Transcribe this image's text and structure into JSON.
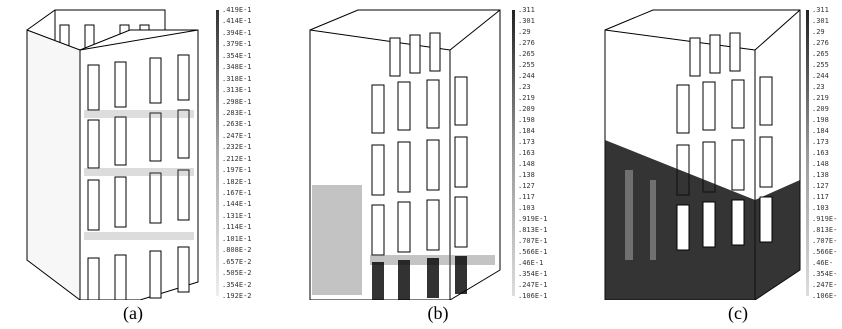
{
  "panels": [
    {
      "caption": "(a)",
      "scale_ticks": [
        ".419E-1",
        ".414E-1",
        ".394E-1",
        ".379E-1",
        ".354E-1",
        ".348E-1",
        ".318E-1",
        ".313E-1",
        ".298E-1",
        ".283E-1",
        ".263E-1",
        ".247E-1",
        ".232E-1",
        ".212E-1",
        ".197E-1",
        ".182E-1",
        ".167E-1",
        ".144E-1",
        ".131E-1",
        ".114E-1",
        ".101E-1",
        ".808E-2",
        ".657E-2",
        ".505E-2",
        ".354E-2",
        ".192E-2"
      ]
    },
    {
      "caption": "(b)",
      "scale_ticks": [
        ".311",
        ".301",
        ".29",
        ".276",
        ".265",
        ".255",
        ".244",
        ".23",
        ".219",
        ".209",
        ".198",
        ".184",
        ".173",
        ".163",
        ".148",
        ".138",
        ".127",
        ".117",
        ".103",
        ".919E-1",
        ".813E-1",
        ".707E-1",
        ".566E-1",
        ".46E-1",
        ".354E-1",
        ".247E-1",
        ".106E-1"
      ]
    },
    {
      "caption": "(c)",
      "scale_ticks": [
        ".311",
        ".301",
        ".29",
        ".276",
        ".265",
        ".255",
        ".244",
        ".23",
        ".219",
        ".209",
        ".198",
        ".184",
        ".173",
        ".163",
        ".148",
        ".138",
        ".127",
        ".117",
        ".103",
        ".919E-",
        ".813E-",
        ".707E-",
        ".566E-",
        ".46E-",
        ".354E-",
        ".247E-",
        ".106E-"
      ]
    }
  ]
}
